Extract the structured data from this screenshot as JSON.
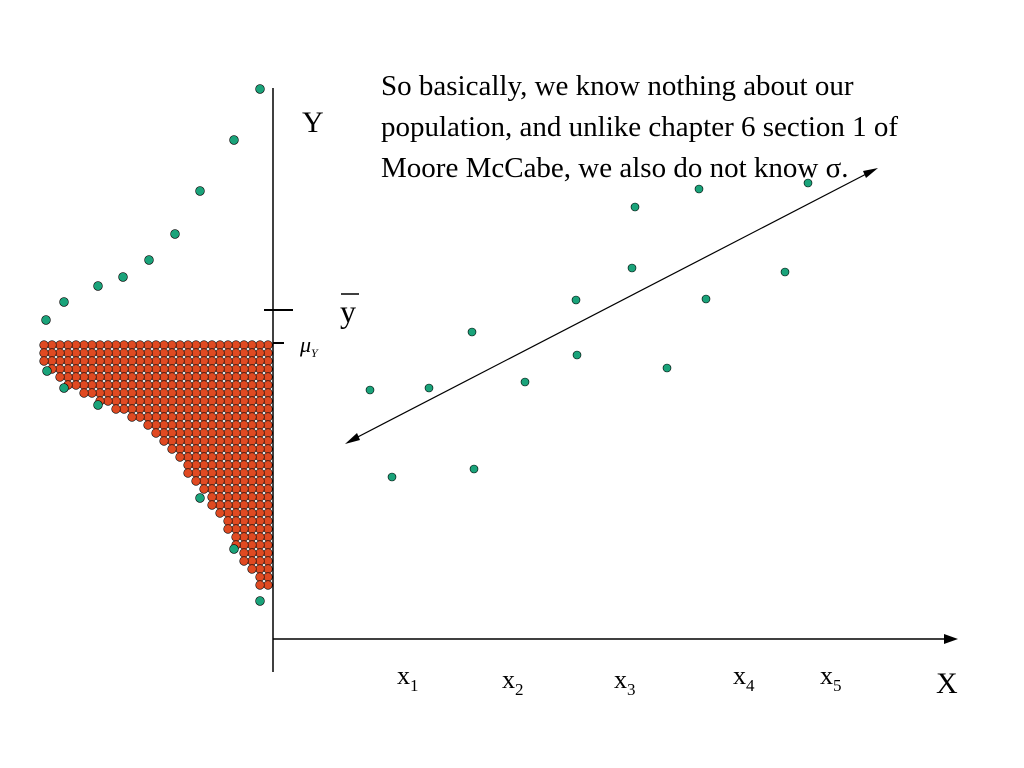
{
  "caption": "So basically, we know nothing about our population, and unlike chapter 6 section 1 of Moore McCabe, we also do not know σ.",
  "axes": {
    "y_label": "Y",
    "x_label": "X"
  },
  "y_markers": {
    "ybar_label": "y",
    "mu_symbol": "μ",
    "mu_subscript": "Y"
  },
  "x_ticks": [
    {
      "base": "x",
      "sub": "1"
    },
    {
      "base": "x",
      "sub": "2"
    },
    {
      "base": "x",
      "sub": "3"
    },
    {
      "base": "x",
      "sub": "4"
    },
    {
      "base": "x",
      "sub": "5"
    }
  ],
  "colors": {
    "sample_dot": "#1aa37a",
    "population_dot": "#e04a22",
    "axis": "#000000"
  },
  "population_triangle": {
    "description_free": "",
    "shape": "right-skewed distribution drawn as dot grid along Y axis"
  }
}
